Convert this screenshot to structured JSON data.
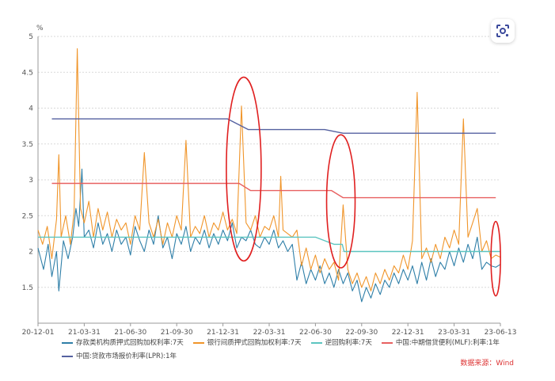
{
  "chart_data": {
    "type": "line",
    "unit_label": "%",
    "ylim": [
      1,
      5
    ],
    "yticks": [
      "1.5",
      "2",
      "2.5",
      "3",
      "3.5",
      "4",
      "4.5",
      "5"
    ],
    "xticks": [
      "20-12-01",
      "21-03-31",
      "21-06-30",
      "21-09-30",
      "21-12-31",
      "22-03-31",
      "22-06-30",
      "22-09-30",
      "22-12-31",
      "23-03-31",
      "23-06-13"
    ],
    "grid": true,
    "legend_position": "bottom",
    "series": [
      {
        "name": "存款类机构质押式回购加权利率:7天",
        "color": "#2f7fa8",
        "points": [
          [
            0.0,
            2.05
          ],
          [
            0.012,
            1.75
          ],
          [
            0.022,
            2.1
          ],
          [
            0.03,
            1.65
          ],
          [
            0.04,
            2.0
          ],
          [
            0.045,
            1.45
          ],
          [
            0.055,
            2.15
          ],
          [
            0.065,
            1.9
          ],
          [
            0.075,
            2.2
          ],
          [
            0.082,
            2.6
          ],
          [
            0.088,
            2.35
          ],
          [
            0.095,
            3.15
          ],
          [
            0.1,
            2.2
          ],
          [
            0.11,
            2.3
          ],
          [
            0.12,
            2.05
          ],
          [
            0.13,
            2.4
          ],
          [
            0.14,
            2.1
          ],
          [
            0.15,
            2.25
          ],
          [
            0.16,
            2.0
          ],
          [
            0.17,
            2.3
          ],
          [
            0.18,
            2.1
          ],
          [
            0.19,
            2.2
          ],
          [
            0.2,
            1.95
          ],
          [
            0.21,
            2.35
          ],
          [
            0.22,
            2.15
          ],
          [
            0.23,
            2.0
          ],
          [
            0.24,
            2.3
          ],
          [
            0.25,
            2.1
          ],
          [
            0.26,
            2.5
          ],
          [
            0.27,
            2.05
          ],
          [
            0.28,
            2.2
          ],
          [
            0.29,
            1.9
          ],
          [
            0.3,
            2.25
          ],
          [
            0.31,
            2.1
          ],
          [
            0.32,
            2.35
          ],
          [
            0.33,
            2.0
          ],
          [
            0.34,
            2.2
          ],
          [
            0.35,
            2.1
          ],
          [
            0.36,
            2.3
          ],
          [
            0.37,
            2.05
          ],
          [
            0.38,
            2.25
          ],
          [
            0.39,
            2.1
          ],
          [
            0.4,
            2.3
          ],
          [
            0.41,
            2.15
          ],
          [
            0.42,
            2.4
          ],
          [
            0.43,
            2.05
          ],
          [
            0.44,
            2.2
          ],
          [
            0.45,
            2.15
          ],
          [
            0.46,
            2.3
          ],
          [
            0.47,
            2.1
          ],
          [
            0.48,
            2.05
          ],
          [
            0.49,
            2.2
          ],
          [
            0.5,
            2.1
          ],
          [
            0.51,
            2.3
          ],
          [
            0.52,
            2.05
          ],
          [
            0.53,
            2.15
          ],
          [
            0.54,
            2.0
          ],
          [
            0.55,
            2.1
          ],
          [
            0.56,
            1.6
          ],
          [
            0.57,
            1.85
          ],
          [
            0.58,
            1.55
          ],
          [
            0.59,
            1.75
          ],
          [
            0.6,
            1.6
          ],
          [
            0.61,
            1.8
          ],
          [
            0.62,
            1.55
          ],
          [
            0.63,
            1.7
          ],
          [
            0.64,
            1.5
          ],
          [
            0.65,
            1.75
          ],
          [
            0.66,
            1.55
          ],
          [
            0.67,
            1.7
          ],
          [
            0.68,
            1.45
          ],
          [
            0.69,
            1.6
          ],
          [
            0.7,
            1.3
          ],
          [
            0.71,
            1.5
          ],
          [
            0.72,
            1.35
          ],
          [
            0.73,
            1.55
          ],
          [
            0.74,
            1.4
          ],
          [
            0.75,
            1.6
          ],
          [
            0.76,
            1.5
          ],
          [
            0.77,
            1.7
          ],
          [
            0.78,
            1.55
          ],
          [
            0.79,
            1.75
          ],
          [
            0.8,
            1.6
          ],
          [
            0.81,
            1.8
          ],
          [
            0.82,
            1.55
          ],
          [
            0.83,
            1.85
          ],
          [
            0.84,
            1.6
          ],
          [
            0.85,
            1.9
          ],
          [
            0.86,
            1.65
          ],
          [
            0.87,
            1.85
          ],
          [
            0.88,
            1.75
          ],
          [
            0.89,
            2.0
          ],
          [
            0.9,
            1.8
          ],
          [
            0.91,
            2.05
          ],
          [
            0.92,
            1.85
          ],
          [
            0.93,
            2.1
          ],
          [
            0.94,
            1.9
          ],
          [
            0.95,
            2.2
          ],
          [
            0.96,
            1.75
          ],
          [
            0.97,
            1.85
          ],
          [
            0.98,
            1.8
          ],
          [
            0.99,
            1.78
          ],
          [
            1.0,
            1.82
          ]
        ]
      },
      {
        "name": "银行间质押式回购加权利率:7天",
        "color": "#f0952a",
        "points": [
          [
            0.0,
            2.3
          ],
          [
            0.01,
            2.1
          ],
          [
            0.02,
            2.35
          ],
          [
            0.03,
            1.9
          ],
          [
            0.04,
            2.45
          ],
          [
            0.045,
            3.35
          ],
          [
            0.05,
            2.2
          ],
          [
            0.06,
            2.5
          ],
          [
            0.07,
            2.1
          ],
          [
            0.078,
            2.55
          ],
          [
            0.085,
            4.83
          ],
          [
            0.092,
            2.6
          ],
          [
            0.1,
            2.4
          ],
          [
            0.11,
            2.7
          ],
          [
            0.12,
            2.2
          ],
          [
            0.13,
            2.6
          ],
          [
            0.14,
            2.3
          ],
          [
            0.15,
            2.55
          ],
          [
            0.16,
            2.2
          ],
          [
            0.17,
            2.45
          ],
          [
            0.18,
            2.3
          ],
          [
            0.19,
            2.4
          ],
          [
            0.2,
            2.1
          ],
          [
            0.21,
            2.5
          ],
          [
            0.22,
            2.3
          ],
          [
            0.23,
            3.38
          ],
          [
            0.24,
            2.4
          ],
          [
            0.25,
            2.2
          ],
          [
            0.26,
            2.45
          ],
          [
            0.27,
            2.1
          ],
          [
            0.28,
            2.4
          ],
          [
            0.29,
            2.2
          ],
          [
            0.3,
            2.5
          ],
          [
            0.31,
            2.3
          ],
          [
            0.32,
            3.55
          ],
          [
            0.33,
            2.2
          ],
          [
            0.34,
            2.35
          ],
          [
            0.35,
            2.25
          ],
          [
            0.36,
            2.5
          ],
          [
            0.37,
            2.2
          ],
          [
            0.38,
            2.4
          ],
          [
            0.39,
            2.3
          ],
          [
            0.4,
            2.55
          ],
          [
            0.41,
            2.3
          ],
          [
            0.42,
            2.45
          ],
          [
            0.43,
            2.25
          ],
          [
            0.44,
            4.03
          ],
          [
            0.45,
            2.4
          ],
          [
            0.46,
            2.3
          ],
          [
            0.47,
            2.5
          ],
          [
            0.48,
            2.2
          ],
          [
            0.49,
            2.35
          ],
          [
            0.5,
            2.3
          ],
          [
            0.51,
            2.5
          ],
          [
            0.52,
            2.2
          ],
          [
            0.525,
            3.05
          ],
          [
            0.53,
            2.3
          ],
          [
            0.54,
            2.25
          ],
          [
            0.55,
            2.2
          ],
          [
            0.56,
            2.3
          ],
          [
            0.57,
            1.8
          ],
          [
            0.58,
            2.05
          ],
          [
            0.59,
            1.75
          ],
          [
            0.6,
            1.95
          ],
          [
            0.61,
            1.7
          ],
          [
            0.62,
            1.9
          ],
          [
            0.63,
            1.75
          ],
          [
            0.64,
            1.85
          ],
          [
            0.65,
            1.6
          ],
          [
            0.66,
            2.65
          ],
          [
            0.67,
            1.75
          ],
          [
            0.68,
            1.55
          ],
          [
            0.69,
            1.7
          ],
          [
            0.7,
            1.5
          ],
          [
            0.71,
            1.65
          ],
          [
            0.72,
            1.45
          ],
          [
            0.73,
            1.7
          ],
          [
            0.74,
            1.55
          ],
          [
            0.75,
            1.75
          ],
          [
            0.76,
            1.6
          ],
          [
            0.77,
            1.8
          ],
          [
            0.78,
            1.7
          ],
          [
            0.79,
            1.95
          ],
          [
            0.8,
            1.75
          ],
          [
            0.81,
            2.15
          ],
          [
            0.82,
            4.22
          ],
          [
            0.83,
            1.9
          ],
          [
            0.84,
            2.05
          ],
          [
            0.85,
            1.85
          ],
          [
            0.86,
            2.1
          ],
          [
            0.87,
            1.9
          ],
          [
            0.88,
            2.2
          ],
          [
            0.89,
            2.05
          ],
          [
            0.9,
            2.3
          ],
          [
            0.91,
            2.1
          ],
          [
            0.92,
            3.85
          ],
          [
            0.93,
            2.2
          ],
          [
            0.94,
            2.4
          ],
          [
            0.95,
            2.6
          ],
          [
            0.96,
            2.0
          ],
          [
            0.97,
            2.15
          ],
          [
            0.98,
            1.9
          ],
          [
            0.99,
            1.95
          ],
          [
            1.0,
            1.92
          ]
        ]
      },
      {
        "name": "逆回购利率:7天",
        "color": "#5cc5c0",
        "points": [
          [
            0.0,
            2.2
          ],
          [
            0.6,
            2.2
          ],
          [
            0.64,
            2.1
          ],
          [
            0.658,
            2.1
          ],
          [
            0.662,
            2.0
          ],
          [
            1.0,
            2.0
          ]
        ]
      },
      {
        "name": "中国:中期借贷便利(MLF):利率:1年",
        "color": "#e86060",
        "points": [
          [
            0.03,
            2.95
          ],
          [
            0.435,
            2.95
          ],
          [
            0.46,
            2.85
          ],
          [
            0.635,
            2.85
          ],
          [
            0.66,
            2.75
          ],
          [
            0.99,
            2.75
          ]
        ]
      },
      {
        "name": "中国:贷款市场报价利率(LPR):1年",
        "color": "#5561a0",
        "points": [
          [
            0.03,
            3.85
          ],
          [
            0.41,
            3.85
          ],
          [
            0.455,
            3.7
          ],
          [
            0.62,
            3.7
          ],
          [
            0.66,
            3.65
          ],
          [
            0.99,
            3.65
          ]
        ]
      }
    ],
    "highlight_ellipses_color": "#e02020"
  },
  "footer": {
    "source_text": "数据来源：Wind"
  },
  "toolbar": {
    "lens_icon": "google-lens-icon"
  }
}
